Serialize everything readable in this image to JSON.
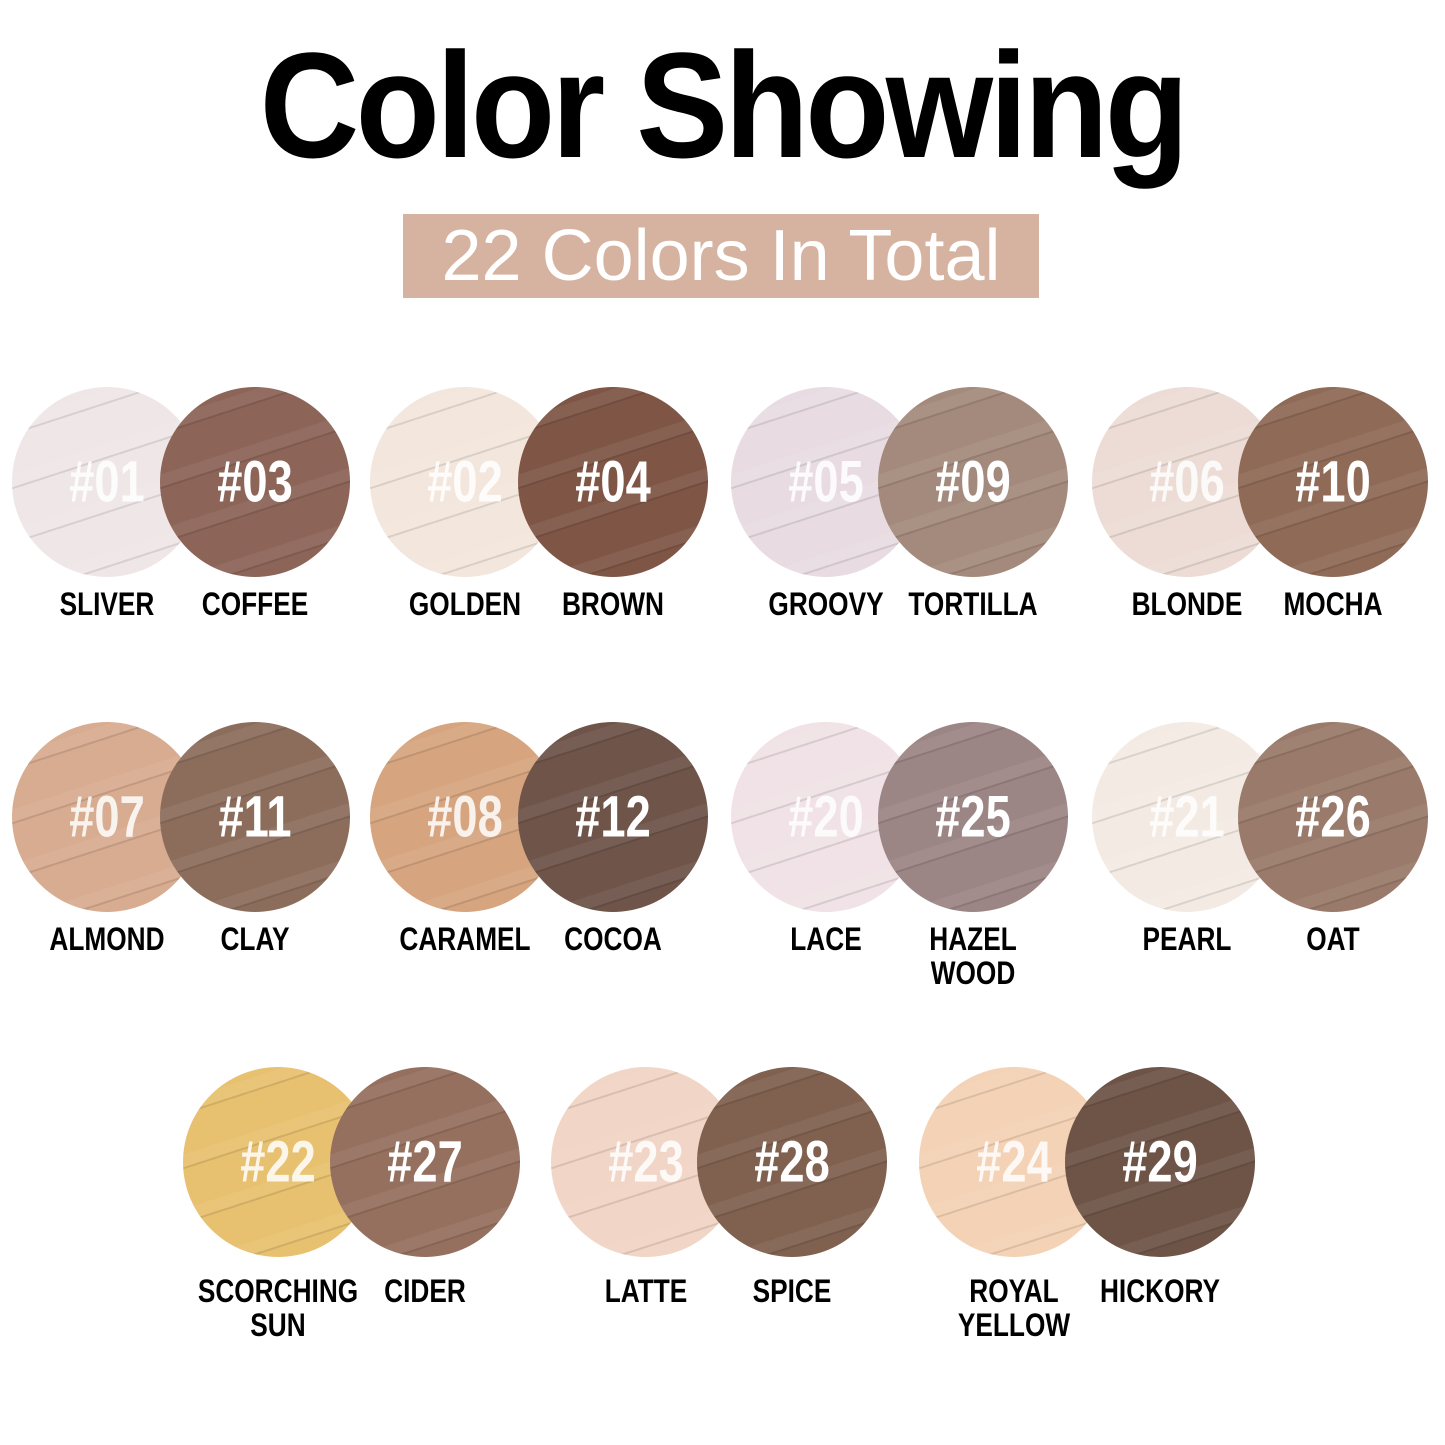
{
  "title": "Color Showing",
  "subtitle": "22 Colors In Total",
  "swatches": [
    {
      "code": "#01",
      "name": "SLIVER",
      "color": "#efe6e8"
    },
    {
      "code": "#03",
      "name": "COFFEE",
      "color": "#8c6458"
    },
    {
      "code": "#02",
      "name": "GOLDEN",
      "color": "#f3e6dc"
    },
    {
      "code": "#04",
      "name": "BROWN",
      "color": "#7f5646"
    },
    {
      "code": "#05",
      "name": "GROOVY",
      "color": "#e8dce2"
    },
    {
      "code": "#09",
      "name": "TORTILLA",
      "color": "#a48a7c"
    },
    {
      "code": "#06",
      "name": "BLONDE",
      "color": "#ecdcd5"
    },
    {
      "code": "#10",
      "name": "MOCHA",
      "color": "#8f6a57"
    },
    {
      "code": "#07",
      "name": "ALMOND",
      "color": "#d8ac90"
    },
    {
      "code": "#11",
      "name": "CLAY",
      "color": "#8c6d5c"
    },
    {
      "code": "#08",
      "name": "CARAMEL",
      "color": "#d6a57f"
    },
    {
      "code": "#12",
      "name": "COCOA",
      "color": "#6e5449"
    },
    {
      "code": "#20",
      "name": "LACE",
      "color": "#f0e2e6"
    },
    {
      "code": "#25",
      "name": "HAZEL\nWOOD",
      "color": "#9c8585"
    },
    {
      "code": "#21",
      "name": "PEARL",
      "color": "#f3ebe3"
    },
    {
      "code": "#26",
      "name": "OAT",
      "color": "#9a7a6a"
    },
    {
      "code": "#22",
      "name": "SCORCHING\nSUN",
      "color": "#e8c170"
    },
    {
      "code": "#27",
      "name": "CIDER",
      "color": "#96705f"
    },
    {
      "code": "#23",
      "name": "LATTE",
      "color": "#f1d5c6"
    },
    {
      "code": "#28",
      "name": "SPICE",
      "color": "#80614f"
    },
    {
      "code": "#24",
      "name": "ROYAL\nYELLOW",
      "color": "#f4d2b5"
    },
    {
      "code": "#29",
      "name": "HICKORY",
      "color": "#6e5447"
    }
  ]
}
